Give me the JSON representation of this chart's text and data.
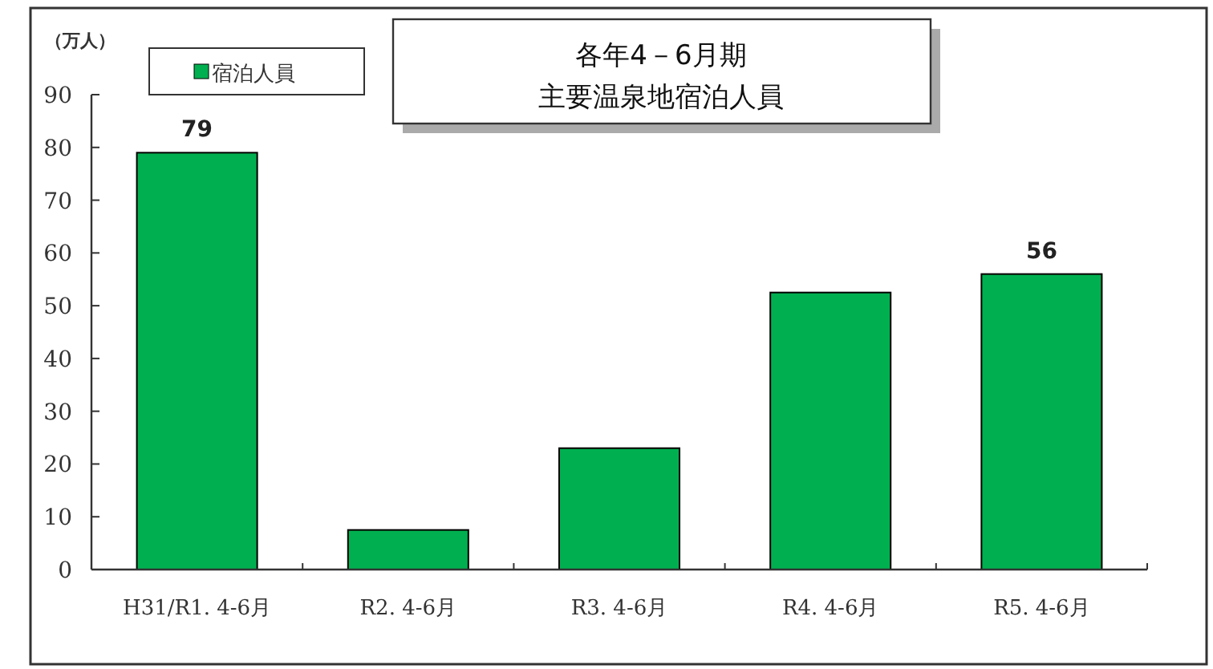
{
  "chart_data": {
    "type": "bar",
    "title": "各年4－6月期",
    "subtitle": "主要温泉地宿泊人員",
    "ylabel": "（万人）",
    "categories": [
      "H31/R1. 4-6月",
      "R2. 4-6月",
      "R3. 4-6月",
      "R4. 4-6月",
      "R5. 4-6月"
    ],
    "series": [
      {
        "name": "宿泊人員",
        "color": "#00b050",
        "values": [
          79,
          7.5,
          23,
          52.5,
          56
        ],
        "value_labels": [
          "79",
          null,
          null,
          null,
          "56"
        ]
      }
    ],
    "ylim": [
      0,
      90
    ],
    "yticks": [
      0,
      10,
      20,
      30,
      40,
      50,
      60,
      70,
      80,
      90
    ],
    "grid": false,
    "legend": "top left"
  }
}
